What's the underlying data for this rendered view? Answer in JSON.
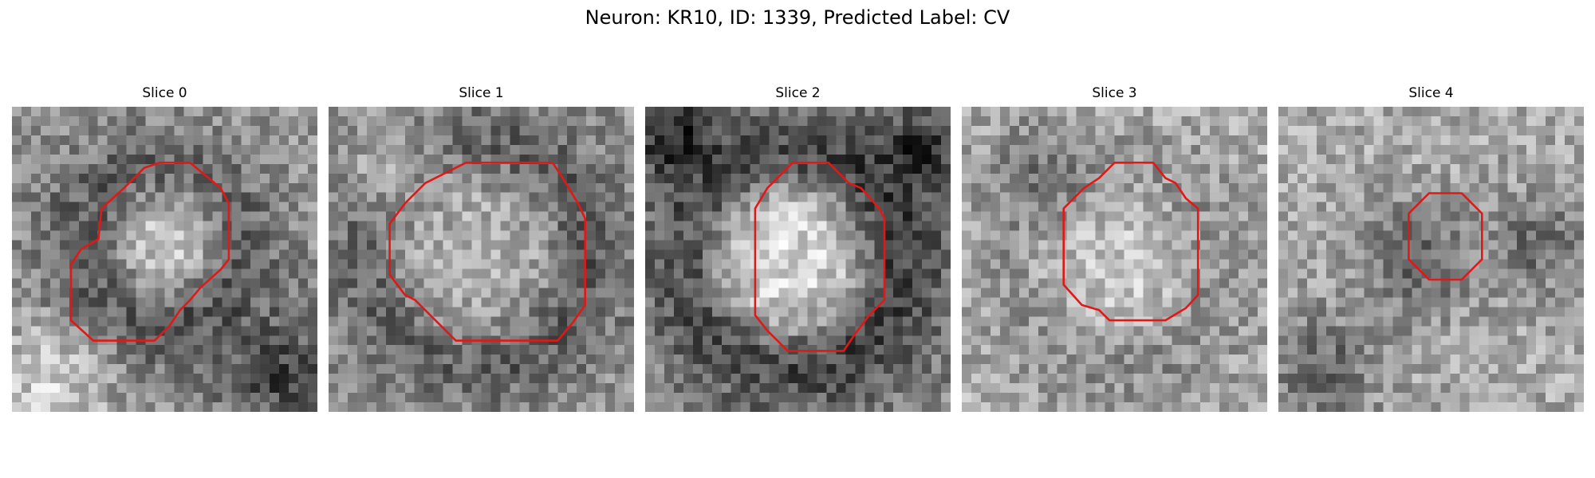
{
  "figure": {
    "title": "Neuron: KR10, ID: 1339, Predicted Label: CV"
  },
  "outline_color": "#e01818",
  "panels": [
    {
      "title": "Slice 0"
    },
    {
      "title": "Slice 1"
    },
    {
      "title": "Slice 2"
    },
    {
      "title": "Slice 3"
    },
    {
      "title": "Slice 4"
    }
  ]
}
